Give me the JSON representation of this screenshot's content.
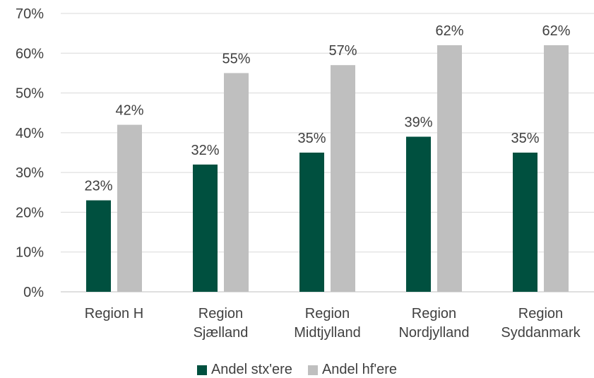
{
  "chart_data": {
    "type": "bar",
    "title": "",
    "xlabel": "",
    "ylabel": "",
    "categories": [
      [
        "Region H"
      ],
      [
        "Region",
        "Sjælland"
      ],
      [
        "Region",
        "Midtjylland"
      ],
      [
        "Region",
        "Nordjylland"
      ],
      [
        "Region",
        "Syddanmark"
      ]
    ],
    "series": [
      {
        "name": "Andel stx'ere",
        "color": "#00503F",
        "values": [
          23,
          32,
          35,
          39,
          35
        ]
      },
      {
        "name": "Andel hf'ere",
        "color": "#BFBFBF",
        "values": [
          42,
          55,
          57,
          62,
          62
        ]
      }
    ],
    "ylim": [
      0,
      70
    ],
    "yticks": [
      0,
      10,
      20,
      30,
      40,
      50,
      60,
      70
    ],
    "value_format": "percent",
    "grid": true,
    "legend_position": "bottom"
  }
}
